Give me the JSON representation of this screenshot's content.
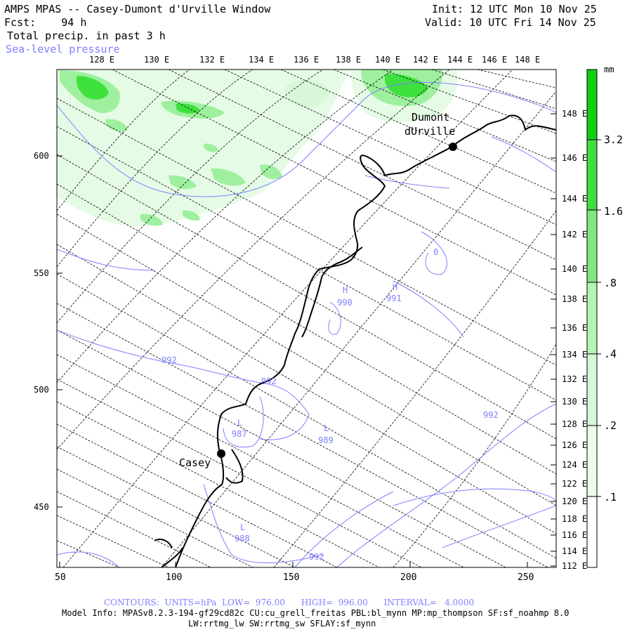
{
  "header": {
    "title": "AMPS MPAS -- Casey-Dumont d'Urville Window",
    "init": "Init: 12 UTC Mon 10 Nov 25",
    "forecast": "Fcst:    94 h",
    "valid": "Valid: 10 UTC Fri 14 Nov 25",
    "field": "Total precip. in past 3 h",
    "overlay": "Sea-level pressure"
  },
  "colors": {
    "precip_light": "#e6fbe6",
    "precip_mid": "#9ef09e",
    "precip_strong": "#3ee03e",
    "precip_heavy": "#10d010",
    "contour": "#7f7fff",
    "coast": "#000000"
  },
  "top_lon_labels": [
    "128 E",
    "130 E",
    "132 E",
    "134 E",
    "136 E",
    "138 E",
    "140 E",
    "142 E",
    "144 E",
    "146 E",
    "148 E"
  ],
  "right_lon_labels": [
    "148 E",
    "146 E",
    "144 E",
    "142 E",
    "140 E",
    "138 E",
    "136 E",
    "134 E",
    "132 E",
    "130 E",
    "128 E",
    "126 E",
    "124 E",
    "122 E",
    "120 E",
    "118 E",
    "116 E",
    "114 E",
    "112 E"
  ],
  "y_axis_labels": [
    "600",
    "550",
    "500",
    "450"
  ],
  "x_axis_labels": [
    "50",
    "100",
    "150",
    "200",
    "250"
  ],
  "stations": [
    {
      "name": "Casey"
    },
    {
      "name1": "Dumont",
      "name2": "dUrville"
    }
  ],
  "pressure_centers": [
    {
      "type": "H",
      "value": "990"
    },
    {
      "type": "H",
      "value": "991"
    },
    {
      "type": "L",
      "value": "987"
    },
    {
      "type": "L",
      "value": "989"
    },
    {
      "type": "L",
      "value": "988"
    }
  ],
  "contour_labels": [
    "992",
    "992",
    "992",
    "992",
    "0"
  ],
  "colorbar": {
    "unit": "mm",
    "ticks": [
      "3.2",
      "1.6",
      ".8",
      ".4",
      ".2",
      ".1"
    ]
  },
  "footer": {
    "contours": "CONTOURS:  UNITS=hPa  LOW=  976.00      HIGH=  996.00      INTERVAL=   4.0000",
    "model_info": "Model Info: MPASv8.2.3-194-gf29cd82c CU:cu_grell_freitas PBL:bl_mynn MP:mp_thompson SF:sf_noahmp 8.0",
    "model_info2": "LW:rrtmg_lw SW:rrtmg_sw SFLAY:sf_mynn"
  }
}
